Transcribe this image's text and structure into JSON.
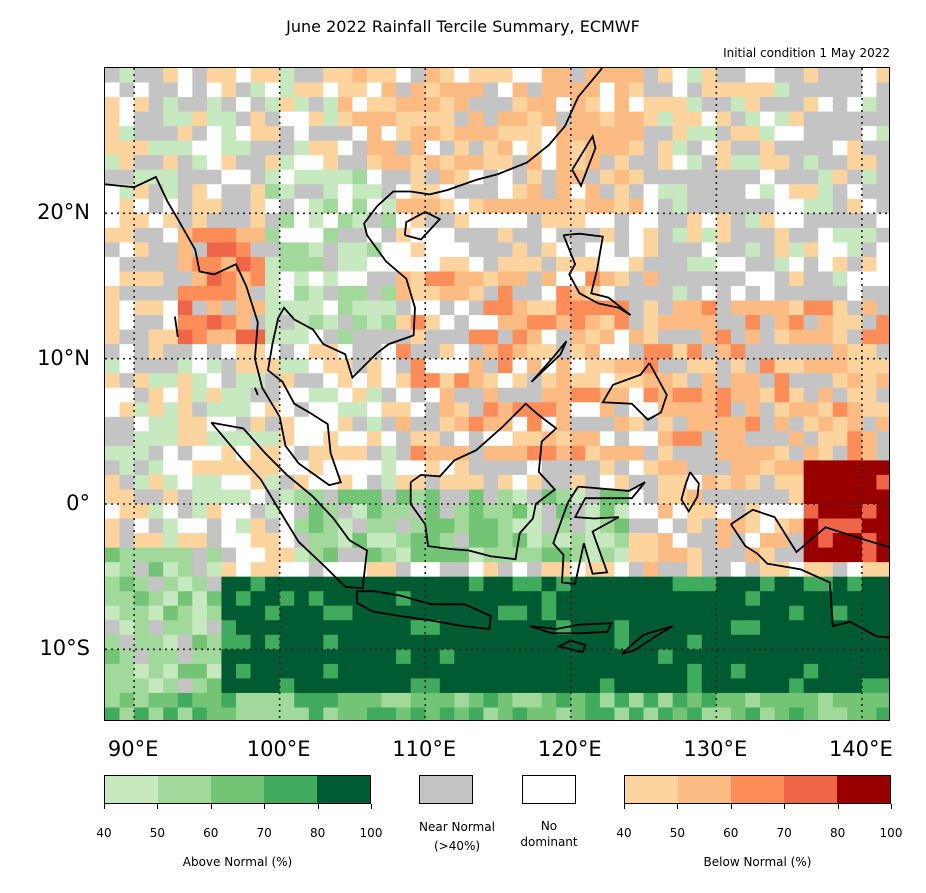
{
  "title": "June 2022 Rainfall Tercile Summary, ECMWF",
  "subtitle": "Initial condition 1 May 2022",
  "lat_labels": [
    {
      "text": "20°N",
      "lat": 20
    },
    {
      "text": "10°N",
      "lat": 10
    },
    {
      "text": "0°",
      "lat": 0
    },
    {
      "text": "10°S",
      "lat": -10
    }
  ],
  "lon_labels": [
    {
      "text": "90°E",
      "lon": 90
    },
    {
      "text": "100°E",
      "lon": 100
    },
    {
      "text": "110°E",
      "lon": 110
    },
    {
      "text": "120°E",
      "lon": 120
    },
    {
      "text": "130°E",
      "lon": 130
    },
    {
      "text": "140°E",
      "lon": 140
    }
  ],
  "map_extent": {
    "lon_min": 88,
    "lon_max": 142,
    "lat_min": -15,
    "lat_max": 30
  },
  "legend": {
    "above_normal": {
      "caption": "Above Normal (%)",
      "ticks": [
        "40",
        "50",
        "60",
        "70",
        "80",
        "100"
      ],
      "colors": [
        "#c7e9c0",
        "#a1d99b",
        "#74c476",
        "#41ab5d",
        "#005a32"
      ]
    },
    "near_normal": {
      "caption_line1": "Near Normal",
      "caption_line2": "(>40%)",
      "color": "#c4c4c4"
    },
    "no_dominant": {
      "caption_line1": "No",
      "caption_line2": "dominant",
      "color": "#ffffff"
    },
    "below_normal": {
      "caption": "Below Normal (%)",
      "ticks": [
        "40",
        "50",
        "60",
        "70",
        "80",
        "100"
      ],
      "colors": [
        "#fdd49e",
        "#fdbb84",
        "#fc8d59",
        "#ef6548",
        "#990000"
      ]
    }
  },
  "map_colors": {
    "below": [
      "#fdd49e",
      "#fdbb84",
      "#fc8d59",
      "#ef6548",
      "#990000"
    ],
    "above": [
      "#c7e9c0",
      "#a1d99b",
      "#74c476",
      "#41ab5d",
      "#005a32"
    ],
    "near": "#c4c4c4",
    "none": "#ffffff"
  }
}
